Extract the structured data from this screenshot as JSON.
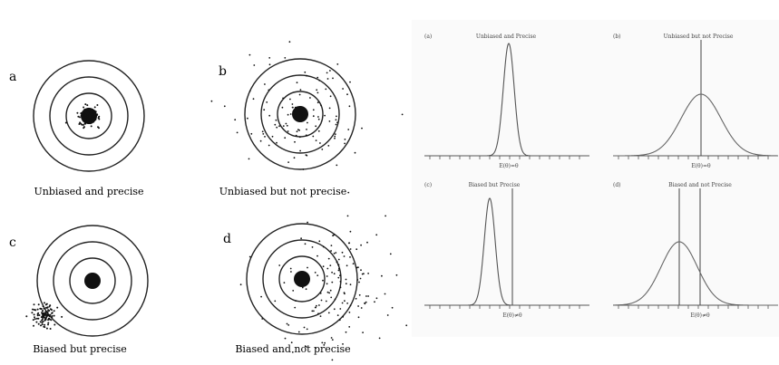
{
  "targets": [
    {
      "letter": "a",
      "caption": "Unbiased and precise"
    },
    {
      "letter": "b",
      "caption": "Unbiased but not precise"
    },
    {
      "letter": "c",
      "caption": "Biased but precise"
    },
    {
      "letter": "d",
      "caption": "Biased and not precise"
    }
  ],
  "distributions": [
    {
      "tag": "(a)",
      "title": "Unbiased and Precise",
      "axis_label": "E(θ)=θ"
    },
    {
      "tag": "(b)",
      "title": "Unbiased but not Precise",
      "axis_label": "E(θ)=θ"
    },
    {
      "tag": "(c)",
      "title": "Biased but Precise",
      "axis_label": "E(θ)≠θ"
    },
    {
      "tag": "(d)",
      "title": "Biased and not Precise",
      "axis_label": "E(θ)≠θ"
    }
  ],
  "colors": {
    "ink": "#222222",
    "curve": "#555555",
    "panel_bg": "#fafafa"
  }
}
